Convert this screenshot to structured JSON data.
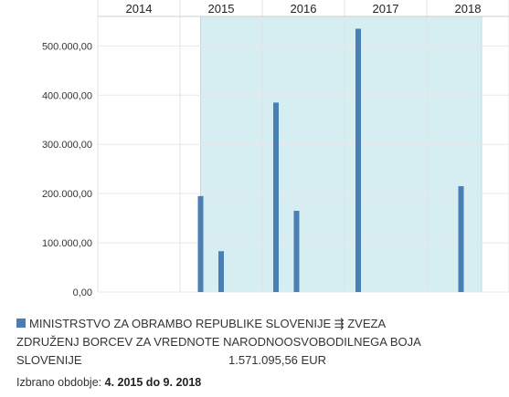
{
  "chart_data": {
    "type": "bar",
    "x_ticks": [
      "2014",
      "2015",
      "2016",
      "2017",
      "2018"
    ],
    "y_ticks": [
      "0,00",
      "100.000,00",
      "200.000,00",
      "300.000,00",
      "400.000,00",
      "500.000,00"
    ],
    "ylim": [
      0,
      560000
    ],
    "x_range": [
      "2014-01",
      "2019-01"
    ],
    "highlight_range": [
      "2015-04",
      "2018-09"
    ],
    "highlight_color": "#d6eef2",
    "bar_color": "#4a7fb5",
    "grid": true,
    "series": [
      {
        "points": [
          {
            "x": "2015-04",
            "y": 195000
          },
          {
            "x": "2015-07",
            "y": 83000
          },
          {
            "x": "2016-03",
            "y": 385000
          },
          {
            "x": "2016-06",
            "y": 165000
          },
          {
            "x": "2017-03",
            "y": 535000
          },
          {
            "x": "2018-06",
            "y": 215000
          }
        ]
      }
    ]
  },
  "legend": {
    "text": "MINISTRSTVO ZA OBRAMBO REPUBLIKE SLOVENIJE ⇶ ZVEZA ZDRUŽENJ BORCEV ZA VREDNOTE NARODNOOSVOBODILNEGA BOJA SLOVENIJE",
    "amount": "1.571.095,56 EUR"
  },
  "period": {
    "label": "Izbrano obdobje:",
    "value": "4. 2015 do 9. 2018"
  }
}
